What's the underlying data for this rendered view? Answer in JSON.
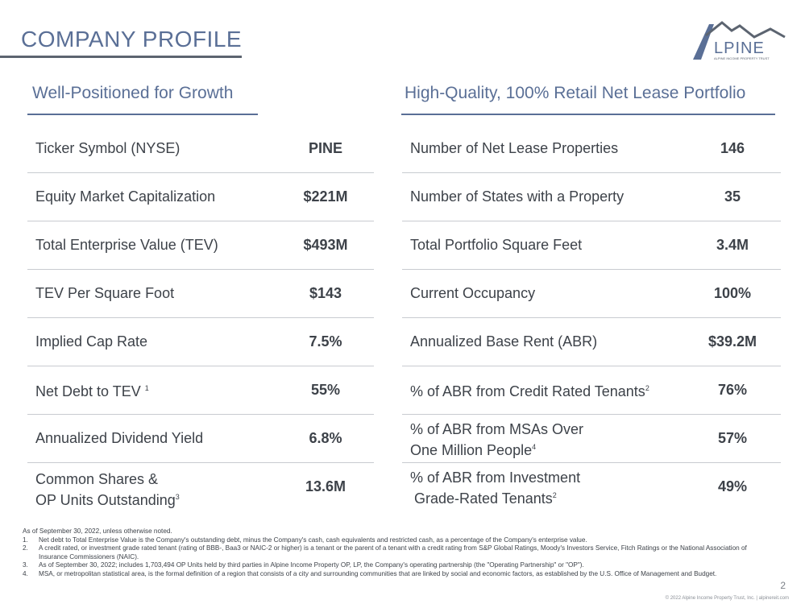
{
  "header": {
    "title": "COMPANY PROFILE",
    "logo_text": "LPINE",
    "logo_subtext": "ALPINE INCOME PROPERTY TRUST"
  },
  "left": {
    "heading": "Well-Positioned for Growth",
    "rows": [
      {
        "label": "Ticker Symbol (NYSE)",
        "value": "PINE"
      },
      {
        "label": "Equity Market Capitalization",
        "value": "$221M"
      },
      {
        "label": "Total Enterprise Value (TEV)",
        "value": "$493M"
      },
      {
        "label": "TEV Per Square Foot",
        "value": "$143"
      },
      {
        "label": "Implied Cap Rate",
        "value": "7.5%"
      },
      {
        "label": "Net Debt to TEV",
        "sup": "1",
        "value": "55%"
      },
      {
        "label": "Annualized Dividend Yield",
        "value": "6.8%"
      },
      {
        "label_line1": "Common Shares &",
        "label_line2": "OP Units Outstanding",
        "sup": "3",
        "value": "13.6M"
      }
    ]
  },
  "right": {
    "heading": "High-Quality, 100% Retail Net Lease Portfolio",
    "rows": [
      {
        "label": "Number of Net Lease Properties",
        "value": "146"
      },
      {
        "label": "Number of States with a Property",
        "value": "35"
      },
      {
        "label": "Total Portfolio Square Feet",
        "value": "3.4M"
      },
      {
        "label": "Current Occupancy",
        "value": "100%"
      },
      {
        "label": "Annualized Base Rent (ABR)",
        "value": "$39.2M"
      },
      {
        "label": "% of ABR from Credit Rated Tenants",
        "sup": "2",
        "value": "76%"
      },
      {
        "label_line1": "% of ABR from MSAs Over",
        "label_line2": "One Million People",
        "sup": "4",
        "value": "57%"
      },
      {
        "label_line1": "% of ABR from Investment",
        "label_line2": " Grade-Rated Tenants",
        "sup": "2",
        "value": "49%"
      }
    ]
  },
  "notes": {
    "intro": "As of September 30, 2022, unless otherwise noted.",
    "items": [
      {
        "num": "1.",
        "text": "Net debt to Total Enterprise Value is the Company's outstanding debt, minus the Company's cash, cash equivalents and restricted cash, as a percentage of the Company's enterprise value."
      },
      {
        "num": "2.",
        "text": "A credit rated, or investment grade rated tenant (rating of BBB-, Baa3 or NAIC-2 or higher) is a tenant or the parent of a tenant with a credit rating from S&P Global Ratings, Moody's Investors Service, Fitch Ratings or the National Association of Insurance Commissioners (NAIC)."
      },
      {
        "num": "3.",
        "text": "As of September 30, 2022; includes 1,703,494 OP Units held by third parties in Alpine Income Property OP, LP, the Company's operating partnership (the \"Operating Partnership\" or \"OP\")."
      },
      {
        "num": "4.",
        "text": "MSA, or metropolitan statistical area, is the formal definition of a region that consists of a city and surrounding communities that are linked by social and economic factors, as established by the U.S. Office of Management and Budget."
      }
    ]
  },
  "page_number": "2",
  "footer": "© 2022 Alpine Income Property Trust, Inc.  |  alpinereit.com"
}
